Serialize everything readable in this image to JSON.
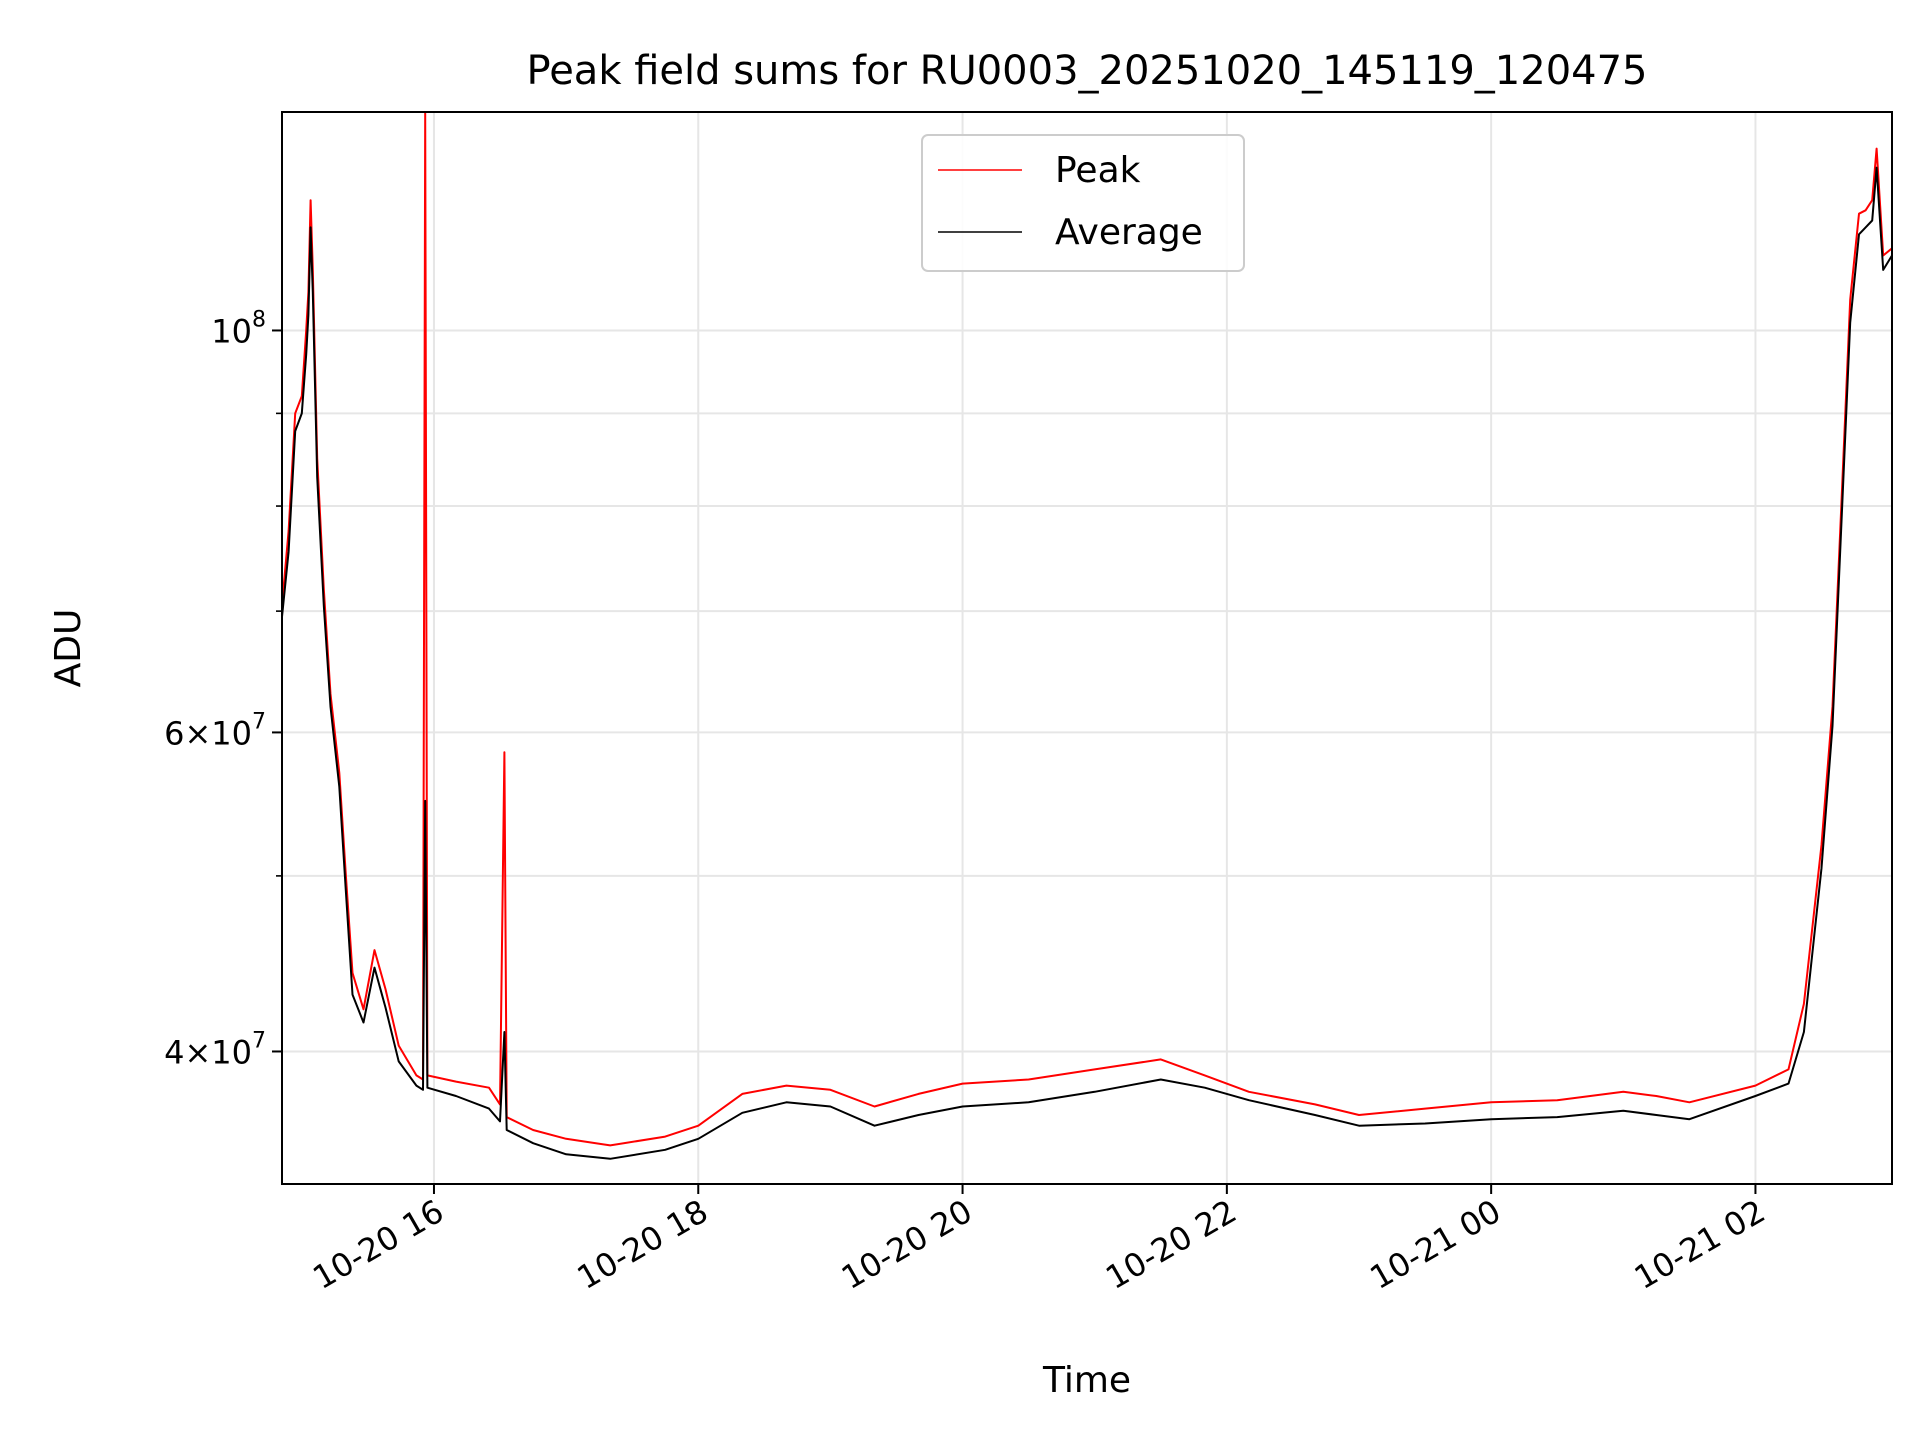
{
  "chart_data": {
    "type": "line",
    "title": "Peak field sums for RU0003_20251020_145119_120475",
    "xlabel": "Time",
    "ylabel": "ADU",
    "y_scale": "log",
    "ylim": [
      33800000,
      132000000
    ],
    "xlim": [
      "2025-10-20 14:51",
      "2025-10-21 03:02"
    ],
    "grid": true,
    "legend_position": "upper center",
    "x_ticks": [
      {
        "t": "2025-10-20 16:00",
        "label": "10-20 16"
      },
      {
        "t": "2025-10-20 18:00",
        "label": "10-20 18"
      },
      {
        "t": "2025-10-20 20:00",
        "label": "10-20 20"
      },
      {
        "t": "2025-10-20 22:00",
        "label": "10-20 22"
      },
      {
        "t": "2025-10-21 00:00",
        "label": "10-21 00"
      },
      {
        "t": "2025-10-21 02:00",
        "label": "10-21 02"
      }
    ],
    "y_ticks": [
      {
        "value": 40000000,
        "mant": "4",
        "exp": "7"
      },
      {
        "value": 60000000,
        "mant": "6",
        "exp": "7"
      },
      {
        "value": 100000000,
        "mant": "",
        "exp": "8"
      }
    ],
    "y_minor_ticks": [
      50000000,
      70000000,
      80000000,
      90000000
    ],
    "series": [
      {
        "name": "Peak",
        "color": "#ff0000",
        "points": [
          [
            "2025-10-20 14:51",
            70500000
          ],
          [
            "2025-10-20 14:54",
            77500000
          ],
          [
            "2025-10-20 14:57",
            90000000
          ],
          [
            "2025-10-20 15:00",
            92000000
          ],
          [
            "2025-10-20 15:02",
            100000000
          ],
          [
            "2025-10-20 15:03",
            105000000
          ],
          [
            "2025-10-20 15:04",
            118000000
          ],
          [
            "2025-10-20 15:05",
            108000000
          ],
          [
            "2025-10-20 15:07",
            85000000
          ],
          [
            "2025-10-20 15:10",
            72000000
          ],
          [
            "2025-10-20 15:13",
            63000000
          ],
          [
            "2025-10-20 15:17",
            57000000
          ],
          [
            "2025-10-20 15:20",
            50000000
          ],
          [
            "2025-10-20 15:23",
            44200000
          ],
          [
            "2025-10-20 15:28",
            42200000
          ],
          [
            "2025-10-20 15:33",
            45500000
          ],
          [
            "2025-10-20 15:38",
            43300000
          ],
          [
            "2025-10-20 15:44",
            40300000
          ],
          [
            "2025-10-20 15:52",
            38800000
          ],
          [
            "2025-10-20 15:55",
            38600000
          ],
          [
            "2025-10-20 15:56",
            132000000
          ],
          [
            "2025-10-20 15:57",
            38800000
          ],
          [
            "2025-10-20 16:10",
            38500000
          ],
          [
            "2025-10-20 16:25",
            38200000
          ],
          [
            "2025-10-20 16:30",
            37400000
          ],
          [
            "2025-10-20 16:32",
            58500000
          ],
          [
            "2025-10-20 16:33",
            36800000
          ],
          [
            "2025-10-20 16:45",
            36200000
          ],
          [
            "2025-10-20 17:00",
            35800000
          ],
          [
            "2025-10-20 17:20",
            35500000
          ],
          [
            "2025-10-20 17:45",
            35900000
          ],
          [
            "2025-10-20 18:00",
            36400000
          ],
          [
            "2025-10-20 18:20",
            37900000
          ],
          [
            "2025-10-20 18:40",
            38300000
          ],
          [
            "2025-10-20 19:00",
            38100000
          ],
          [
            "2025-10-20 19:20",
            37300000
          ],
          [
            "2025-10-20 19:40",
            37900000
          ],
          [
            "2025-10-20 20:00",
            38400000
          ],
          [
            "2025-10-20 20:30",
            38600000
          ],
          [
            "2025-10-20 21:00",
            39100000
          ],
          [
            "2025-10-20 21:30",
            39600000
          ],
          [
            "2025-10-20 21:50",
            38800000
          ],
          [
            "2025-10-20 22:10",
            38000000
          ],
          [
            "2025-10-20 22:40",
            37400000
          ],
          [
            "2025-10-20 23:00",
            36900000
          ],
          [
            "2025-10-20 23:30",
            37200000
          ],
          [
            "2025-10-21 00:00",
            37500000
          ],
          [
            "2025-10-21 00:30",
            37600000
          ],
          [
            "2025-10-21 01:00",
            38000000
          ],
          [
            "2025-10-21 01:15",
            37800000
          ],
          [
            "2025-10-21 01:30",
            37500000
          ],
          [
            "2025-10-21 02:00",
            38300000
          ],
          [
            "2025-10-21 02:15",
            39100000
          ],
          [
            "2025-10-21 02:22",
            42500000
          ],
          [
            "2025-10-21 02:30",
            52000000
          ],
          [
            "2025-10-21 02:35",
            62000000
          ],
          [
            "2025-10-21 02:39",
            80000000
          ],
          [
            "2025-10-21 02:43",
            104000000
          ],
          [
            "2025-10-21 02:47",
            116000000
          ],
          [
            "2025-10-21 02:50",
            116500000
          ],
          [
            "2025-10-21 02:53",
            118000000
          ],
          [
            "2025-10-21 02:55",
            126000000
          ],
          [
            "2025-10-21 02:58",
            110000000
          ],
          [
            "2025-10-21 03:02",
            111000000
          ]
        ]
      },
      {
        "name": "Average",
        "color": "#000000",
        "points": [
          [
            "2025-10-20 14:51",
            69500000
          ],
          [
            "2025-10-20 14:54",
            75500000
          ],
          [
            "2025-10-20 14:57",
            88000000
          ],
          [
            "2025-10-20 15:00",
            90000000
          ],
          [
            "2025-10-20 15:02",
            97000000
          ],
          [
            "2025-10-20 15:03",
            102000000
          ],
          [
            "2025-10-20 15:04",
            114000000
          ],
          [
            "2025-10-20 15:05",
            105000000
          ],
          [
            "2025-10-20 15:07",
            83000000
          ],
          [
            "2025-10-20 15:10",
            70500000
          ],
          [
            "2025-10-20 15:13",
            62000000
          ],
          [
            "2025-10-20 15:17",
            56000000
          ],
          [
            "2025-10-20 15:20",
            49000000
          ],
          [
            "2025-10-20 15:23",
            43000000
          ],
          [
            "2025-10-20 15:28",
            41500000
          ],
          [
            "2025-10-20 15:33",
            44500000
          ],
          [
            "2025-10-20 15:38",
            42300000
          ],
          [
            "2025-10-20 15:44",
            39500000
          ],
          [
            "2025-10-20 15:52",
            38300000
          ],
          [
            "2025-10-20 15:55",
            38100000
          ],
          [
            "2025-10-20 15:56",
            55000000
          ],
          [
            "2025-10-20 15:57",
            38200000
          ],
          [
            "2025-10-20 16:10",
            37800000
          ],
          [
            "2025-10-20 16:25",
            37200000
          ],
          [
            "2025-10-20 16:30",
            36600000
          ],
          [
            "2025-10-20 16:32",
            41000000
          ],
          [
            "2025-10-20 16:33",
            36200000
          ],
          [
            "2025-10-20 16:45",
            35600000
          ],
          [
            "2025-10-20 17:00",
            35100000
          ],
          [
            "2025-10-20 17:20",
            34900000
          ],
          [
            "2025-10-20 17:45",
            35300000
          ],
          [
            "2025-10-20 18:00",
            35800000
          ],
          [
            "2025-10-20 18:20",
            37000000
          ],
          [
            "2025-10-20 18:40",
            37500000
          ],
          [
            "2025-10-20 19:00",
            37300000
          ],
          [
            "2025-10-20 19:20",
            36400000
          ],
          [
            "2025-10-20 19:40",
            36900000
          ],
          [
            "2025-10-20 20:00",
            37300000
          ],
          [
            "2025-10-20 20:30",
            37500000
          ],
          [
            "2025-10-20 21:00",
            38000000
          ],
          [
            "2025-10-20 21:30",
            38600000
          ],
          [
            "2025-10-20 21:50",
            38200000
          ],
          [
            "2025-10-20 22:10",
            37600000
          ],
          [
            "2025-10-20 22:40",
            36900000
          ],
          [
            "2025-10-20 23:00",
            36400000
          ],
          [
            "2025-10-20 23:30",
            36500000
          ],
          [
            "2025-10-21 00:00",
            36700000
          ],
          [
            "2025-10-21 00:30",
            36800000
          ],
          [
            "2025-10-21 01:00",
            37100000
          ],
          [
            "2025-10-21 01:15",
            36900000
          ],
          [
            "2025-10-21 01:30",
            36700000
          ],
          [
            "2025-10-21 02:00",
            37800000
          ],
          [
            "2025-10-21 02:15",
            38400000
          ],
          [
            "2025-10-21 02:22",
            41000000
          ],
          [
            "2025-10-21 02:30",
            50500000
          ],
          [
            "2025-10-21 02:35",
            60500000
          ],
          [
            "2025-10-21 02:39",
            78000000
          ],
          [
            "2025-10-21 02:43",
            101000000
          ],
          [
            "2025-10-21 02:47",
            113000000
          ],
          [
            "2025-10-21 02:50",
            114000000
          ],
          [
            "2025-10-21 02:53",
            115000000
          ],
          [
            "2025-10-21 02:55",
            123000000
          ],
          [
            "2025-10-21 02:58",
            108000000
          ],
          [
            "2025-10-21 03:02",
            110000000
          ]
        ]
      }
    ]
  }
}
